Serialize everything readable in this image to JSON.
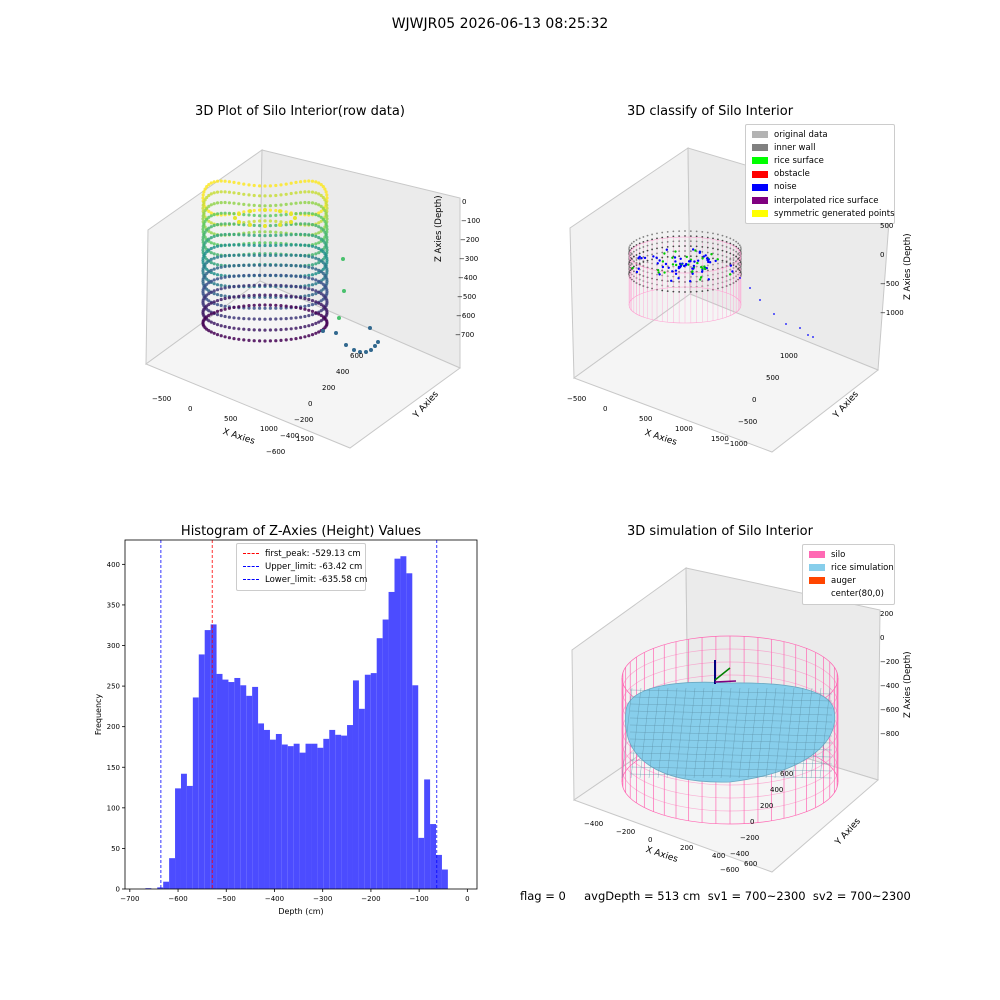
{
  "suptitle": "WJWJR05 2026-06-13 08:25:32",
  "footer": "flag = 0     avgDepth = 513 cm  sv1 = 700~2300  sv2 = 700~2300",
  "colors": {
    "hist_bar": "#4c4cff",
    "first_peak": "#ff0000",
    "limit_line": "#0000ff",
    "silo": "#ff69b4",
    "rice_sim": "#87ceeb",
    "auger": "#ff4500",
    "original": "#b3b3b3",
    "inner_wall": "#808080",
    "rice_surface": "#00ff00",
    "obstacle": "#ff0000",
    "noise": "#0000ff",
    "interpolated": "#800080",
    "symmetric": "#ffff00"
  },
  "panels": {
    "raw3d": {
      "title": "3D Plot of Silo Interior(row data)",
      "xlabel": "X Axies",
      "ylabel": "Y Axies",
      "zlabel": "Z Axies (Depth)",
      "xticks": [
        "−500",
        "0",
        "500",
        "1000",
        "1500"
      ],
      "yticks": [
        "600",
        "400",
        "200",
        "0",
        "−200",
        "−400",
        "−600"
      ],
      "zticks": [
        "0",
        "−100",
        "−200",
        "−300",
        "−400",
        "−500",
        "−600",
        "−700"
      ]
    },
    "classify3d": {
      "title": "3D classify of Silo Interior",
      "xlabel": "X Axies",
      "ylabel": "Y Axies",
      "zlabel": "Z Axies (Depth)",
      "xticks": [
        "−500",
        "0",
        "500",
        "1000",
        "1500"
      ],
      "yticks": [
        "1000",
        "500",
        "0",
        "−500",
        "−1000"
      ],
      "zticks": [
        "500",
        "0",
        "−500",
        "−1000"
      ],
      "legend": [
        {
          "label": "original data",
          "color": "#b3b3b3"
        },
        {
          "label": "inner wall",
          "color": "#808080"
        },
        {
          "label": "rice surface",
          "color": "#00ff00"
        },
        {
          "label": "obstacle",
          "color": "#ff0000"
        },
        {
          "label": "noise",
          "color": "#0000ff"
        },
        {
          "label": "interpolated rice surface",
          "color": "#800080"
        },
        {
          "label": "symmetric generated points",
          "color": "#ffff00"
        }
      ]
    },
    "sim3d": {
      "title": "3D simulation of Silo Interior",
      "xlabel": "X Axies",
      "ylabel": "Y Axies",
      "zlabel": "Z Axies (Depth)",
      "xticks": [
        "−400",
        "−200",
        "0",
        "200",
        "400",
        "600"
      ],
      "yticks": [
        "600",
        "400",
        "200",
        "0",
        "−200",
        "−400",
        "−600"
      ],
      "zticks": [
        "200",
        "0",
        "−200",
        "−400",
        "−600",
        "−800"
      ],
      "legend": [
        {
          "label": "silo",
          "color": "#ff69b4",
          "kind": "patch"
        },
        {
          "label": "rice simulation",
          "color": "#87ceeb",
          "kind": "patch"
        },
        {
          "label": "auger",
          "color": "#ff4500",
          "kind": "patch"
        },
        {
          "label": "center(80,0)",
          "color": "",
          "kind": "none"
        }
      ]
    }
  },
  "chart_data": [
    {
      "type": "bar",
      "title": "Histogram of Z-Axies (Height) Values",
      "xlabel": "Depth (cm)",
      "ylabel": "Frequency",
      "xlim": [
        -710,
        20
      ],
      "ylim": [
        0,
        430
      ],
      "xticks": [
        -700,
        -600,
        -500,
        -400,
        -300,
        -200,
        -100,
        0
      ],
      "yticks": [
        0,
        50,
        100,
        150,
        200,
        250,
        300,
        350,
        400
      ],
      "bin_width": 12.3,
      "bin_starts": [
        -680,
        -667.7,
        -655.4,
        -643.1,
        -630.8,
        -618.5,
        -606.2,
        -593.9,
        -581.6,
        -569.3,
        -557,
        -544.7,
        -532.4,
        -520.1,
        -507.8,
        -495.5,
        -483.2,
        -470.9,
        -458.6,
        -446.3,
        -434,
        -421.7,
        -409.4,
        -397.1,
        -384.8,
        -372.5,
        -360.2,
        -347.9,
        -335.6,
        -323.3,
        -311,
        -298.7,
        -286.4,
        -274.1,
        -261.8,
        -249.5,
        -237.2,
        -224.9,
        -212.6,
        -200.3,
        -188,
        -175.7,
        -163.4,
        -151.1,
        -138.8,
        -126.5,
        -114.2,
        -101.9,
        -89.6,
        -77.3,
        -65,
        -52.7,
        -40.4,
        -28.1,
        -15.8
      ],
      "values": [
        0,
        1,
        0,
        2,
        9,
        38,
        124,
        142,
        127,
        236,
        289,
        319,
        326,
        265,
        258,
        255,
        260,
        251,
        238,
        249,
        204,
        196,
        184,
        191,
        178,
        176,
        179,
        168,
        179,
        179,
        174,
        185,
        196,
        190,
        189,
        202,
        257,
        222,
        264,
        266,
        309,
        332,
        366,
        407,
        410,
        389,
        251,
        63,
        135,
        80,
        42,
        24,
        0,
        0,
        0
      ],
      "reference_lines": [
        {
          "name": "first_peak: -529.13 cm",
          "x": -529.13,
          "color": "#ff0000"
        },
        {
          "name": "Upper_limit: -63.42 cm",
          "x": -63.42,
          "color": "#0000ff"
        },
        {
          "name": "Lower_limit: -635.58 cm",
          "x": -635.58,
          "color": "#0000ff"
        }
      ],
      "legend_position": "upper center"
    }
  ]
}
